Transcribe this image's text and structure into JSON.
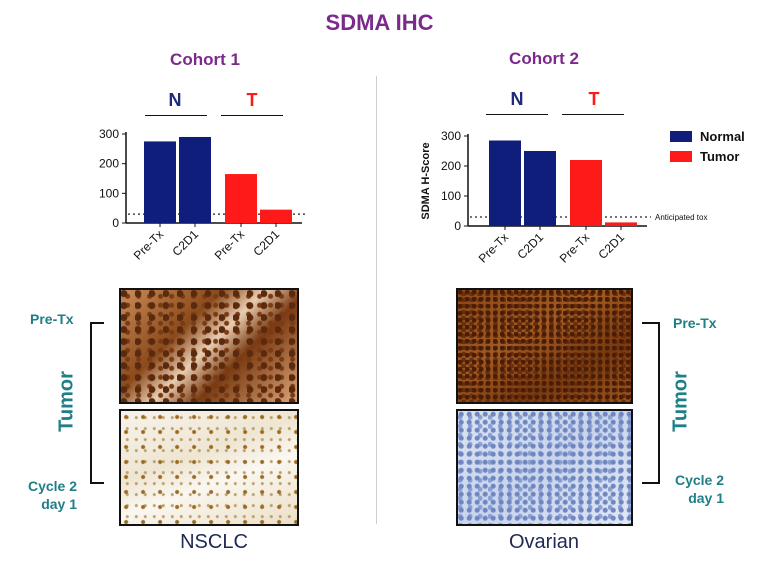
{
  "title": "SDMA IHC",
  "colors": {
    "normal": "#0f1e7a",
    "tumor": "#ff1a1a",
    "accent": "#7b2a8c",
    "teal": "#1f7f86"
  },
  "chart_data": [
    {
      "type": "bar",
      "title": "Cohort 1",
      "groups": [
        {
          "label": "N",
          "color": "#1e2a7a"
        },
        {
          "label": "T",
          "color": "#ff1a1a"
        }
      ],
      "categories": [
        "Pre-Tx",
        "C2D1",
        "Pre-Tx",
        "C2D1"
      ],
      "values": [
        275,
        290,
        165,
        45
      ],
      "series_of_bar": [
        "Normal",
        "Normal",
        "Tumor",
        "Tumor"
      ],
      "ylabel": "",
      "yticks": [
        0,
        100,
        200,
        300
      ],
      "ylim": [
        0,
        300
      ],
      "threshold": 30
    },
    {
      "type": "bar",
      "title": "Cohort 2",
      "groups": [
        {
          "label": "N",
          "color": "#1e2a7a"
        },
        {
          "label": "T",
          "color": "#ff1a1a"
        }
      ],
      "categories": [
        "Pre-Tx",
        "C2D1",
        "Pre-Tx",
        "C2D1"
      ],
      "values": [
        285,
        250,
        220,
        12
      ],
      "series_of_bar": [
        "Normal",
        "Normal",
        "Tumor",
        "Tumor"
      ],
      "ylabel": "SDMA H-Score",
      "yticks": [
        0,
        100,
        200,
        300
      ],
      "ylim": [
        0,
        300
      ],
      "threshold": 30,
      "threshold_label": "Anticipated tox"
    }
  ],
  "legend": [
    {
      "label": "Normal",
      "color": "#0f1e7a"
    },
    {
      "label": "Tumor",
      "color": "#ff1a1a"
    }
  ],
  "images": {
    "left": {
      "cancer": "NSCLC",
      "pre_label": "Pre-Tx",
      "post_label": "Cycle 2 day 1",
      "tumor_label": "Tumor"
    },
    "right": {
      "cancer": "Ovarian",
      "pre_label": "Pre-Tx",
      "post_label": "Cycle 2 day 1",
      "tumor_label": "Tumor"
    }
  }
}
